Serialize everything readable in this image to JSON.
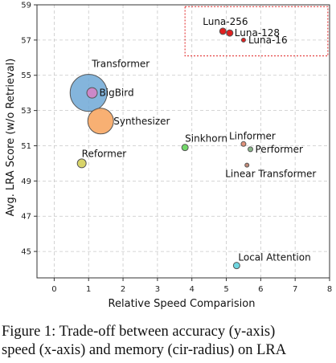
{
  "chart_data": {
    "type": "scatter",
    "xlabel": "Relative Speed Comparision",
    "ylabel": "Avg. LRA Score (w/o Retrieval)",
    "xlim": [
      -0.5,
      8
    ],
    "ylim": [
      43.5,
      59
    ],
    "xticks": [
      0,
      1,
      2,
      3,
      4,
      5,
      6,
      7,
      8
    ],
    "yticks": [
      45,
      47,
      49,
      51,
      53,
      55,
      57,
      59
    ],
    "grid": true,
    "points": [
      {
        "label": "Transformer",
        "x": 1.0,
        "y": 54.0,
        "size": 23,
        "color": "#6fa8d6"
      },
      {
        "label": "BigBird",
        "x": 1.1,
        "y": 54.0,
        "size": 6.5,
        "color": "#cc88c8"
      },
      {
        "label": "Synthesizer",
        "x": 1.35,
        "y": 52.4,
        "size": 16,
        "color": "#f7a25a"
      },
      {
        "label": "Reformer",
        "x": 0.8,
        "y": 50.0,
        "size": 5.5,
        "color": "#d8d46a"
      },
      {
        "label": "Sinkhorn",
        "x": 3.8,
        "y": 50.9,
        "size": 4,
        "color": "#72d86a"
      },
      {
        "label": "Linformer",
        "x": 5.5,
        "y": 51.1,
        "size": 3,
        "color": "#e0917a"
      },
      {
        "label": "Performer",
        "x": 5.7,
        "y": 50.8,
        "size": 3,
        "color": "#8cb88c"
      },
      {
        "label": "Linear Transformer",
        "x": 5.6,
        "y": 49.9,
        "size": 2.5,
        "color": "#c08a78"
      },
      {
        "label": "Local Attention",
        "x": 5.3,
        "y": 44.2,
        "size": 4,
        "color": "#6fd6e0"
      },
      {
        "label": "Luna-256",
        "x": 4.9,
        "y": 57.5,
        "size": 4,
        "color": "#e02020"
      },
      {
        "label": "Luna-128",
        "x": 5.1,
        "y": 57.4,
        "size": 4,
        "color": "#e02020"
      },
      {
        "label": "Luna-16",
        "x": 5.5,
        "y": 57.0,
        "size": 2.5,
        "color": "#e02020"
      }
    ],
    "highlight_box": {
      "x": [
        3.8,
        7.95
      ],
      "y": [
        56.1,
        58.9
      ],
      "color": "#e02020"
    }
  },
  "caption": {
    "line1": "Figure 1: Trade-off between accuracy (y-axis)",
    "line2": "speed (x-axis) and memory (cir-radius) on LRA"
  }
}
